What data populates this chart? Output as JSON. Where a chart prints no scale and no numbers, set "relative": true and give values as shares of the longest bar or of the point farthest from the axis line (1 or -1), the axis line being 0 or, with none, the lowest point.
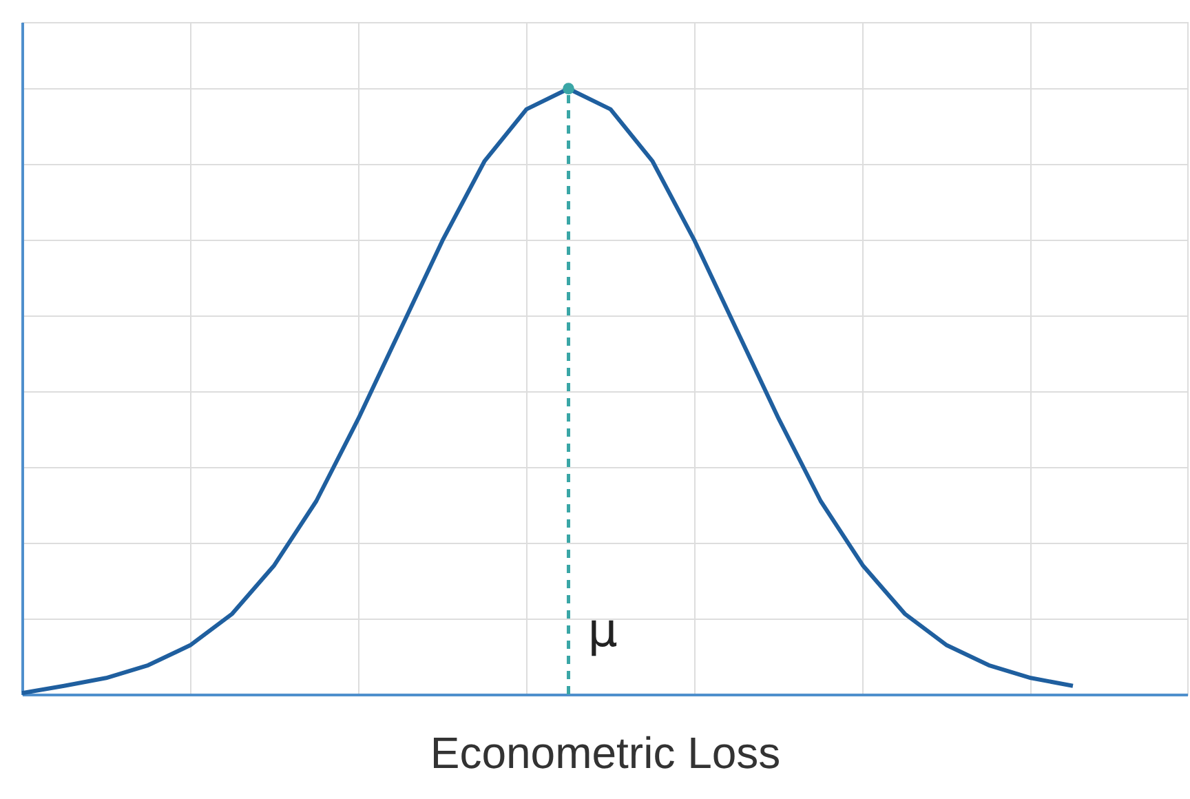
{
  "chart_data": {
    "type": "line",
    "xlabel": "Econometric Loss",
    "relative": true,
    "categories": [
      null,
      null,
      null,
      null,
      null,
      null,
      null,
      null,
      null,
      null,
      null,
      null,
      null,
      null,
      null,
      null,
      null,
      null,
      null,
      null,
      null,
      null,
      null,
      null,
      null,
      null
    ],
    "series": [
      {
        "color": "#1f5f9f",
        "values": [
          0.002,
          0.014,
          0.027,
          0.048,
          0.081,
          0.133,
          0.213,
          0.319,
          0.455,
          0.602,
          0.749,
          0.88,
          0.966,
          1,
          0.966,
          0.88,
          0.749,
          0.602,
          0.455,
          0.319,
          0.213,
          0.133,
          0.081,
          0.048,
          0.027,
          0.014
        ]
      }
    ],
    "ref_lines": [
      {
        "axis": "x",
        "label": "μ",
        "color": "#3aa6a6",
        "line_style": "dashed"
      }
    ],
    "grid": true,
    "tick_labels": false,
    "marker": "none",
    "line_style": "solid"
  }
}
